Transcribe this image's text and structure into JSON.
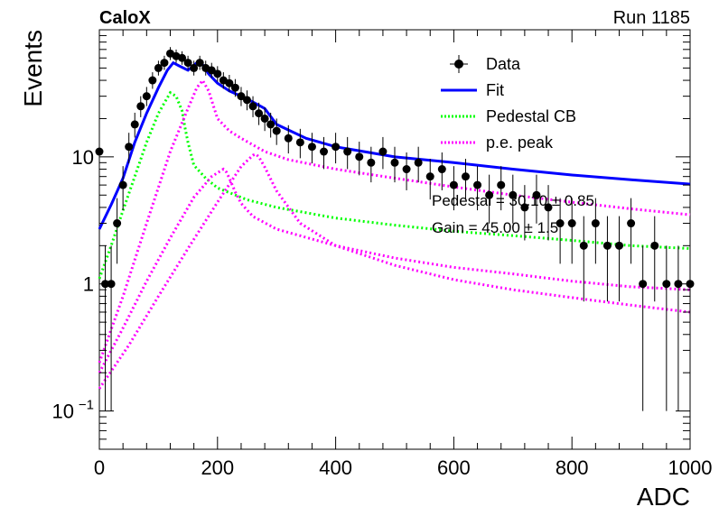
{
  "header": {
    "experiment": "CaloX",
    "run": "Run 1185"
  },
  "annotations": {
    "pedestal": "Pedestal = 30.10 ± 0.85",
    "gain": "Gain = 45.00 ± 1.5"
  },
  "chart_data": {
    "type": "scatter",
    "title": "",
    "xlabel": "ADC",
    "ylabel": "Events",
    "xlim": [
      0,
      1000
    ],
    "ylim": [
      0.05,
      100
    ],
    "yscale": "log",
    "grid": false,
    "legend_position": "top-right",
    "x_ticks": [
      {
        "v": 0,
        "label": "0"
      },
      {
        "v": 200,
        "label": "200"
      },
      {
        "v": 400,
        "label": "400"
      },
      {
        "v": 600,
        "label": "600"
      },
      {
        "v": 800,
        "label": "800"
      },
      {
        "v": 1000,
        "label": "1000"
      }
    ],
    "y_ticks": [
      {
        "v": 0.1,
        "base": "10",
        "exp": "−1"
      },
      {
        "v": 1,
        "base": "1",
        "exp": ""
      },
      {
        "v": 10,
        "base": "10",
        "exp": ""
      }
    ],
    "legend": [
      {
        "label": "Data",
        "style": "marker",
        "color": "#000000"
      },
      {
        "label": "Fit",
        "style": "solid",
        "color": "#0000ff"
      },
      {
        "label": "Pedestal CB",
        "style": "dotted",
        "color": "#00ff00"
      },
      {
        "label": "p.e. peak",
        "style": "dotted",
        "color": "#ff00ff"
      }
    ],
    "series": [
      {
        "name": "Data",
        "kind": "points",
        "color": "#000000",
        "x": [
          0,
          10,
          20,
          30,
          40,
          50,
          60,
          70,
          80,
          90,
          100,
          110,
          120,
          130,
          140,
          150,
          160,
          170,
          180,
          190,
          200,
          210,
          220,
          230,
          240,
          250,
          260,
          270,
          280,
          290,
          300,
          320,
          340,
          360,
          380,
          400,
          420,
          440,
          460,
          480,
          500,
          520,
          540,
          560,
          580,
          600,
          620,
          640,
          660,
          680,
          700,
          720,
          740,
          760,
          780,
          800,
          820,
          840,
          860,
          880,
          900,
          920,
          940,
          960,
          980,
          1000
        ],
        "y": [
          11,
          1,
          1,
          3,
          6,
          12,
          18,
          25,
          30,
          40,
          50,
          55,
          65,
          62,
          60,
          55,
          50,
          55,
          50,
          48,
          45,
          40,
          38,
          35,
          30,
          28,
          25,
          22,
          20,
          18,
          16,
          14,
          13,
          12,
          11,
          12,
          11,
          10,
          9,
          11,
          9,
          8,
          9,
          7,
          8,
          6,
          7,
          6,
          5,
          6,
          5,
          4,
          5,
          4,
          3,
          3,
          2,
          3,
          2,
          2,
          3,
          1,
          2,
          1,
          1,
          1
        ]
      },
      {
        "name": "Fit",
        "kind": "line",
        "color": "#0000ff",
        "x": [
          0,
          20,
          40,
          60,
          80,
          100,
          115,
          125,
          135,
          150,
          165,
          175,
          185,
          200,
          220,
          240,
          260,
          280,
          300,
          350,
          400,
          500,
          600,
          700,
          800,
          900,
          1000
        ],
        "y": [
          2.7,
          4.2,
          6.8,
          13,
          22,
          35,
          48,
          55,
          52,
          48,
          55,
          53,
          45,
          38,
          33,
          30,
          27,
          24,
          18,
          14,
          12,
          10,
          9,
          8,
          7.2,
          6.6,
          6.1
        ]
      },
      {
        "name": "Pedestal CB",
        "kind": "dotted",
        "color": "#00ff00",
        "x": [
          0,
          20,
          40,
          60,
          80,
          100,
          120,
          130,
          140,
          145,
          150,
          160,
          180,
          200,
          250,
          300,
          400,
          500,
          600,
          700,
          800,
          900,
          1000
        ],
        "y": [
          1.1,
          2.0,
          3.8,
          7.0,
          13,
          22,
          32,
          30,
          23,
          17,
          13,
          8.6,
          6.8,
          5.7,
          4.6,
          4.0,
          3.3,
          2.9,
          2.6,
          2.4,
          2.2,
          2.0,
          1.9
        ]
      },
      {
        "name": "p.e. peak 1",
        "kind": "dotted",
        "color": "#ff00ff",
        "x": [
          0,
          40,
          80,
          120,
          150,
          165,
          175,
          185,
          200,
          220,
          240,
          280,
          320,
          400,
          500,
          600,
          700,
          800,
          900,
          1000
        ],
        "y": [
          0.24,
          0.8,
          3.0,
          11,
          24,
          35,
          40,
          33,
          20,
          16,
          14,
          11,
          9.5,
          8.0,
          6.8,
          5.8,
          5.0,
          4.4,
          3.9,
          3.5
        ]
      },
      {
        "name": "p.e. peak 2",
        "kind": "dotted",
        "color": "#ff00ff",
        "x": [
          0,
          40,
          80,
          120,
          160,
          190,
          210,
          215,
          220,
          230,
          240,
          260,
          300,
          400,
          500,
          600,
          700,
          800,
          900,
          1000
        ],
        "y": [
          0.2,
          0.45,
          1.05,
          2.3,
          4.8,
          7.0,
          8.0,
          7.6,
          6.8,
          5.3,
          4.3,
          3.4,
          2.7,
          2.0,
          1.6,
          1.35,
          1.2,
          1.05,
          0.95,
          0.9
        ]
      },
      {
        "name": "p.e. peak 3",
        "kind": "dotted",
        "color": "#ff00ff",
        "x": [
          0,
          50,
          100,
          150,
          200,
          240,
          260,
          265,
          270,
          280,
          300,
          340,
          400,
          500,
          600,
          700,
          800,
          900,
          1000
        ],
        "y": [
          0.15,
          0.33,
          0.8,
          1.9,
          4.4,
          8.4,
          10.3,
          10.5,
          10.0,
          8.3,
          5.4,
          3.0,
          2.0,
          1.4,
          1.08,
          0.9,
          0.78,
          0.68,
          0.6
        ]
      }
    ]
  }
}
